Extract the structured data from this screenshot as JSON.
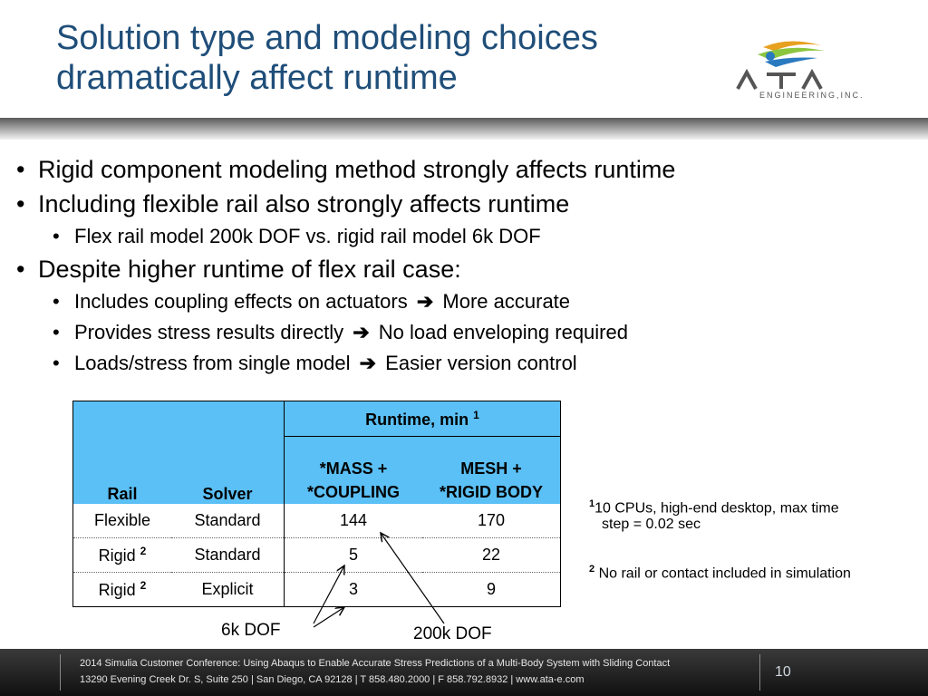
{
  "slide": {
    "title_line1": "Solution type and modeling choices",
    "title_line2": "dramatically affect runtime",
    "logo_text": "ATA",
    "logo_subtext": "ENGINEERING,INC."
  },
  "bullets": {
    "b1": "Rigid component modeling method strongly affects runtime",
    "b2": "Including flexible rail also strongly affects runtime",
    "b2_1": "Flex rail model 200k DOF vs. rigid rail model 6k DOF",
    "b3": "Despite higher runtime of flex rail case:",
    "b3_1a": "Includes coupling effects on actuators",
    "b3_1b": "More accurate",
    "b3_2a": "Provides stress results directly",
    "b3_2b": "No load enveloping required",
    "b3_3a": "Loads/stress from single model",
    "b3_3b": "Easier version control",
    "arrow_glyph": "➔"
  },
  "table": {
    "group_header": "Runtime, min",
    "group_header_sup": "1",
    "col_rail": "Rail",
    "col_solver": "Solver",
    "col_mass_l1": "*MASS +",
    "col_mass_l2": "*COUPLING",
    "col_mesh_l1": "MESH +",
    "col_mesh_l2": "*RIGID BODY",
    "rows": [
      {
        "rail": "Flexible",
        "sup": "",
        "solver": "Standard",
        "mass": "144",
        "mesh": "170"
      },
      {
        "rail": "Rigid",
        "sup": "2",
        "solver": "Standard",
        "mass": "5",
        "mesh": "22"
      },
      {
        "rail": "Rigid",
        "sup": "2",
        "solver": "Explicit",
        "mass": "3",
        "mesh": "9"
      }
    ]
  },
  "callouts": {
    "dof_6k": "6k DOF",
    "dof_200k": "200k DOF"
  },
  "footnotes": {
    "fn1_mark": "1",
    "fn1_line1": "10 CPUs, high-end desktop, max time",
    "fn1_line2": "step = 0.02 sec",
    "fn2_mark": "2",
    "fn2_text": "No rail or contact included in simulation"
  },
  "footer": {
    "line1": "2014 Simulia Customer Conference: Using Abaqus to Enable Accurate Stress Predictions of a Multi-Body System with Sliding Contact",
    "line2": "13290 Evening Creek Dr. S, Suite 250  |  San Diego, CA 92128  |  T 858.480.2000  |  F 858.792.8932  |  www.ata-e.com",
    "page_number": "10"
  },
  "colors": {
    "title": "#1f4e79",
    "table_header": "#5bc0f5",
    "footer_bg": "#1e1e1e"
  }
}
